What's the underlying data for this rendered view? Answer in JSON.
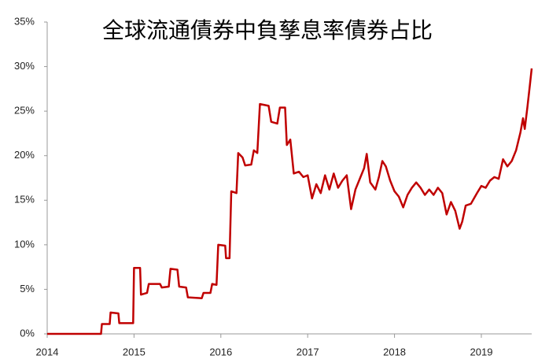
{
  "chart_data": {
    "type": "line",
    "title": "全球流通債券中負孳息率債券占比",
    "x": [
      2014.0,
      2014.62,
      2014.63,
      2014.72,
      2014.73,
      2014.82,
      2014.83,
      2014.99,
      2015.0,
      2015.07,
      2015.08,
      2015.15,
      2015.17,
      2015.3,
      2015.32,
      2015.4,
      2015.42,
      2015.5,
      2015.52,
      2015.6,
      2015.62,
      2015.78,
      2015.8,
      2015.88,
      2015.9,
      2015.95,
      2015.97,
      2016.05,
      2016.06,
      2016.1,
      2016.12,
      2016.18,
      2016.2,
      2016.25,
      2016.28,
      2016.35,
      2016.38,
      2016.42,
      2016.45,
      2016.55,
      2016.58,
      2016.65,
      2016.68,
      2016.74,
      2016.76,
      2016.8,
      2016.84,
      2016.9,
      2016.95,
      2017.0,
      2017.05,
      2017.1,
      2017.15,
      2017.2,
      2017.25,
      2017.3,
      2017.35,
      2017.4,
      2017.45,
      2017.5,
      2017.55,
      2017.6,
      2017.65,
      2017.68,
      2017.72,
      2017.78,
      2017.82,
      2017.86,
      2017.9,
      2017.95,
      2018.0,
      2018.05,
      2018.1,
      2018.15,
      2018.2,
      2018.25,
      2018.3,
      2018.35,
      2018.4,
      2018.45,
      2018.5,
      2018.55,
      2018.6,
      2018.65,
      2018.7,
      2018.75,
      2018.78,
      2018.82,
      2018.88,
      2018.95,
      2019.0,
      2019.05,
      2019.1,
      2019.15,
      2019.2,
      2019.25,
      2019.3,
      2019.35,
      2019.4,
      2019.45,
      2019.48,
      2019.5,
      2019.53,
      2019.56,
      2019.58
    ],
    "series": [
      {
        "color": "#c00000",
        "values": [
          0,
          0,
          1.1,
          1.1,
          2.4,
          2.3,
          1.2,
          1.2,
          7.4,
          7.4,
          4.4,
          4.6,
          5.6,
          5.6,
          5.2,
          5.3,
          7.3,
          7.2,
          5.3,
          5.2,
          4.1,
          4.0,
          4.6,
          4.6,
          5.6,
          5.5,
          10.0,
          9.9,
          8.5,
          8.5,
          16.0,
          15.8,
          20.3,
          19.8,
          18.9,
          19.0,
          20.6,
          20.3,
          25.8,
          25.6,
          23.8,
          23.6,
          25.4,
          25.4,
          21.2,
          21.8,
          18.0,
          18.2,
          17.6,
          17.8,
          15.2,
          16.8,
          15.8,
          17.8,
          16.2,
          18.0,
          16.4,
          17.2,
          17.8,
          14.0,
          16.2,
          17.4,
          18.6,
          20.2,
          17.0,
          16.2,
          17.6,
          19.4,
          18.8,
          17.2,
          16.0,
          15.4,
          14.2,
          15.6,
          16.4,
          17.0,
          16.4,
          15.6,
          16.2,
          15.6,
          16.4,
          15.8,
          13.4,
          14.8,
          13.8,
          11.8,
          12.6,
          14.4,
          14.6,
          15.8,
          16.6,
          16.4,
          17.2,
          17.6,
          17.4,
          19.6,
          18.8,
          19.4,
          20.6,
          22.6,
          24.2,
          23.0,
          25.4,
          28.0,
          29.8
        ]
      }
    ],
    "xlim": [
      2014,
      2019.58
    ],
    "xticks": [
      2014,
      2015,
      2016,
      2017,
      2018,
      2019
    ],
    "ylim": [
      0,
      35
    ],
    "yticks": [
      {
        "value": 0,
        "label": "0%"
      },
      {
        "value": 5,
        "label": "5%"
      },
      {
        "value": 10,
        "label": "10%"
      },
      {
        "value": 15,
        "label": "15%"
      },
      {
        "value": 20,
        "label": "20%"
      },
      {
        "value": 25,
        "label": "25%"
      },
      {
        "value": 30,
        "label": "30%"
      },
      {
        "value": 35,
        "label": "35%"
      }
    ]
  }
}
